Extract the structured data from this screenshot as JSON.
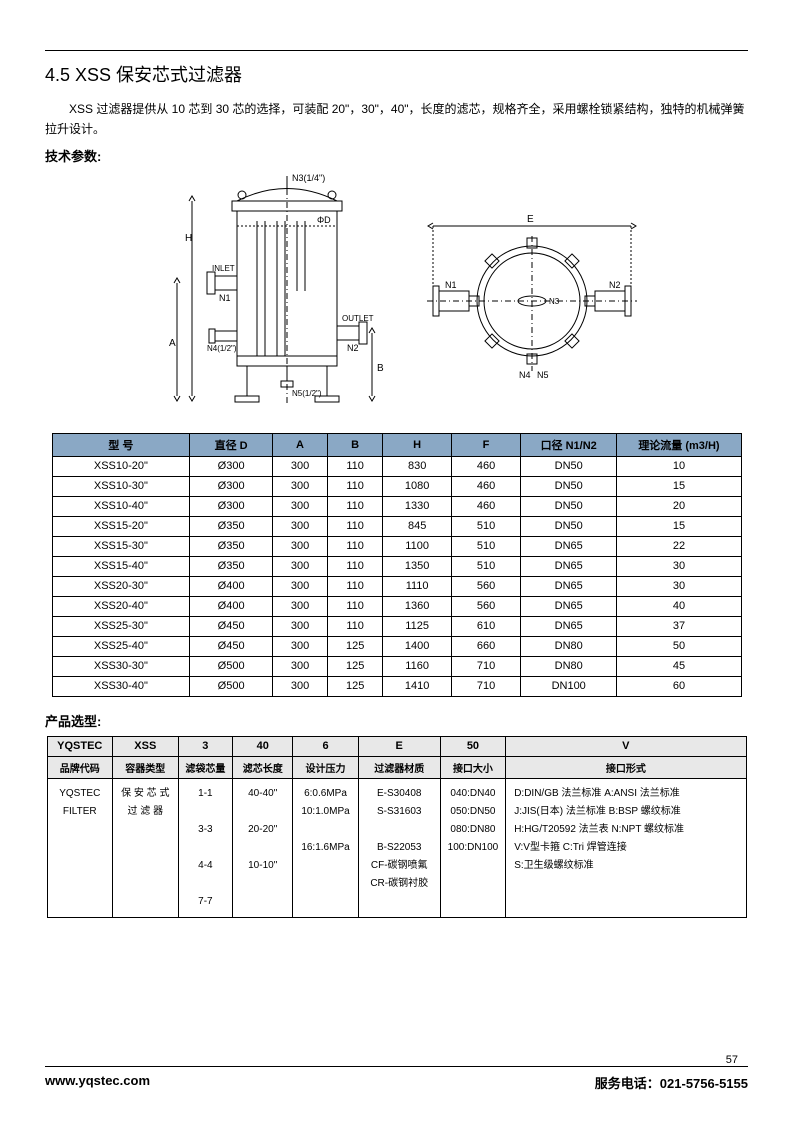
{
  "section_title": "4.5  XSS 保安芯式过滤器",
  "description": "XSS 过滤器提供从 10 芯到 30 芯的选择，可装配 20\"，30\"，40\"，长度的滤芯，规格齐全，采用螺栓锁紧结构，独特的机械弹簧拉升设计。",
  "tech_params_label": "技术参数:",
  "product_sel_label": "产品选型:",
  "diagram": {
    "labels": {
      "n3": "N3(1/4\")",
      "phiD": "ΦD",
      "inlet": "INLET",
      "n1": "N1",
      "n4": "N4(1/2\")",
      "outlet": "OUTLET",
      "n2": "N2",
      "n5": "N5(1/2\")",
      "H": "H",
      "A": "A",
      "B": "B",
      "E": "E",
      "N1r": "N1",
      "N2r": "N2",
      "N3r": "N3",
      "N4r": "N4",
      "N5r": "N5"
    }
  },
  "spec_table": {
    "headers": [
      "型 号",
      "直径 D",
      "A",
      "B",
      "H",
      "F",
      "口径 N1/N2",
      "理论流量 (m3/H)"
    ],
    "col_widths": [
      "100px",
      "60px",
      "40px",
      "40px",
      "50px",
      "50px",
      "70px",
      "90px"
    ],
    "rows": [
      [
        "XSS10-20\"",
        "Ø300",
        "300",
        "110",
        "830",
        "460",
        "DN50",
        "10"
      ],
      [
        "XSS10-30\"",
        "Ø300",
        "300",
        "110",
        "1080",
        "460",
        "DN50",
        "15"
      ],
      [
        "XSS10-40\"",
        "Ø300",
        "300",
        "110",
        "1330",
        "460",
        "DN50",
        "20"
      ],
      [
        "XSS15-20\"",
        "Ø350",
        "300",
        "110",
        "845",
        "510",
        "DN50",
        "15"
      ],
      [
        "XSS15-30\"",
        "Ø350",
        "300",
        "110",
        "1100",
        "510",
        "DN65",
        "22"
      ],
      [
        "XSS15-40\"",
        "Ø350",
        "300",
        "110",
        "1350",
        "510",
        "DN65",
        "30"
      ],
      [
        "XSS20-30\"",
        "Ø400",
        "300",
        "110",
        "1110",
        "560",
        "DN65",
        "30"
      ],
      [
        "XSS20-40\"",
        "Ø400",
        "300",
        "110",
        "1360",
        "560",
        "DN65",
        "40"
      ],
      [
        "XSS25-30\"",
        "Ø450",
        "300",
        "110",
        "1125",
        "610",
        "DN65",
        "37"
      ],
      [
        "XSS25-40\"",
        "Ø450",
        "300",
        "125",
        "1400",
        "660",
        "DN80",
        "50"
      ],
      [
        "XSS30-30\"",
        "Ø500",
        "300",
        "125",
        "1160",
        "710",
        "DN80",
        "45"
      ],
      [
        "XSS30-40\"",
        "Ø500",
        "300",
        "125",
        "1410",
        "710",
        "DN100",
        "60"
      ]
    ]
  },
  "selection_table": {
    "header1": [
      "YQSTEC",
      "XSS",
      "3",
      "40",
      "6",
      "E",
      "50",
      "V"
    ],
    "header2": [
      "品牌代码",
      "容器类型",
      "滤袋芯量",
      "滤芯长度",
      "设计压力",
      "过滤器材质",
      "接口大小",
      "接口形式"
    ],
    "col_widths": [
      "60px",
      "60px",
      "50px",
      "55px",
      "60px",
      "75px",
      "60px",
      "220px"
    ],
    "body": [
      "YQSTEC\nFILTER",
      "保 安 芯 式\n过 滤 器",
      "1-1\n\n3-3\n\n4-4\n\n7-7",
      "40-40\"\n\n20-20\"\n\n10-10\"",
      "6:0.6MPa\n10:1.0MPa\n\n16:1.6MPa",
      "E-S30408\nS-S31603\n\nB-S22053\nCF-碳钢喷氟\nCR-碳钢衬胶",
      "040:DN40\n050:DN50\n080:DN80\n100:DN100",
      "D:DIN/GB 法兰标准       A:ANSI 法兰标准\nJ:JIS(日本) 法兰标准   B:BSP 螺纹标准\nH:HG/T20592 法兰表     N:NPT 螺纹标准\nV:V型卡箍              C:Tri 焊管连接\nS:卫生级螺纹标准"
    ]
  },
  "page_number": "57",
  "footer": {
    "website": "www.yqstec.com",
    "phone_label": "服务电话：",
    "phone": "021-5756-5155"
  },
  "colors": {
    "header_bg": "#8aa8c5",
    "sel_header_bg": "#e8e8e8",
    "line": "#000000",
    "text": "#000000"
  }
}
